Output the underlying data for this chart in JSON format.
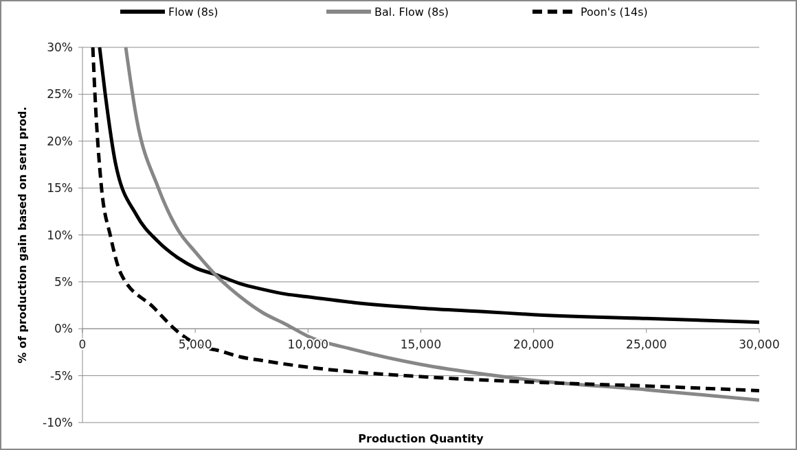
{
  "chart_data": {
    "type": "line",
    "xlabel": "Production Quantity",
    "ylabel": "% of production gain based on seru prod.",
    "xlim": [
      0,
      30000
    ],
    "ylim": [
      -10,
      30
    ],
    "xticks": [
      {
        "value": 0,
        "label": "0"
      },
      {
        "value": 5000,
        "label": "5,000"
      },
      {
        "value": 10000,
        "label": "10,000"
      },
      {
        "value": 15000,
        "label": "15,000"
      },
      {
        "value": 20000,
        "label": "20,000"
      },
      {
        "value": 25000,
        "label": "25,000"
      },
      {
        "value": 30000,
        "label": "30,000"
      }
    ],
    "yticks": [
      {
        "value": -10,
        "label": "-10%"
      },
      {
        "value": -5,
        "label": "-5%"
      },
      {
        "value": 0,
        "label": "0%"
      },
      {
        "value": 5,
        "label": "5%"
      },
      {
        "value": 10,
        "label": "10%"
      },
      {
        "value": 15,
        "label": "15%"
      },
      {
        "value": 20,
        "label": "20%"
      },
      {
        "value": 25,
        "label": "25%"
      },
      {
        "value": 30,
        "label": "30%"
      }
    ],
    "grid": "y",
    "legend": "top",
    "marker": "none",
    "series": [
      {
        "name": "Flow (8s)",
        "color": "#000000",
        "line_style": "solid",
        "x": [
          760,
          1000,
          1460,
          2400,
          3350,
          4270,
          5000,
          6000,
          7000,
          8000,
          9000,
          10000,
          12000,
          15000,
          18000,
          20000,
          25000,
          30000
        ],
        "values": [
          30,
          25.2,
          17.7,
          12.1,
          9.3,
          7.5,
          6.5,
          5.7,
          4.8,
          4.2,
          3.7,
          3.4,
          2.8,
          2.2,
          1.8,
          1.5,
          1.1,
          0.7
        ]
      },
      {
        "name": "Bal. Flow (8s)",
        "color": "#878787",
        "line_style": "solid",
        "x": [
          1920,
          2400,
          3350,
          4270,
          5000,
          6000,
          7000,
          8000,
          9000,
          10000,
          12000,
          15000,
          18000,
          20000,
          25000,
          30000
        ],
        "values": [
          30,
          22.4,
          15.1,
          10.4,
          8.2,
          5.5,
          3.4,
          1.7,
          0.5,
          -0.8,
          -2.2,
          -3.8,
          -4.9,
          -5.5,
          -6.5,
          -7.6
        ]
      },
      {
        "name": "Poon's (14s)",
        "color": "#000000",
        "line_style": "dashed",
        "x": [
          460,
          550,
          830,
          1250,
          1700,
          3140,
          4270,
          5400,
          6000,
          7000,
          8000,
          10000,
          12000,
          15000,
          20000,
          25000,
          30000
        ],
        "values": [
          30,
          25.2,
          15.4,
          9.8,
          5.9,
          2.3,
          -0.4,
          -2.0,
          -2.3,
          -3.0,
          -3.4,
          -4.1,
          -4.6,
          -5.1,
          -5.7,
          -6.1,
          -6.6
        ]
      }
    ]
  }
}
